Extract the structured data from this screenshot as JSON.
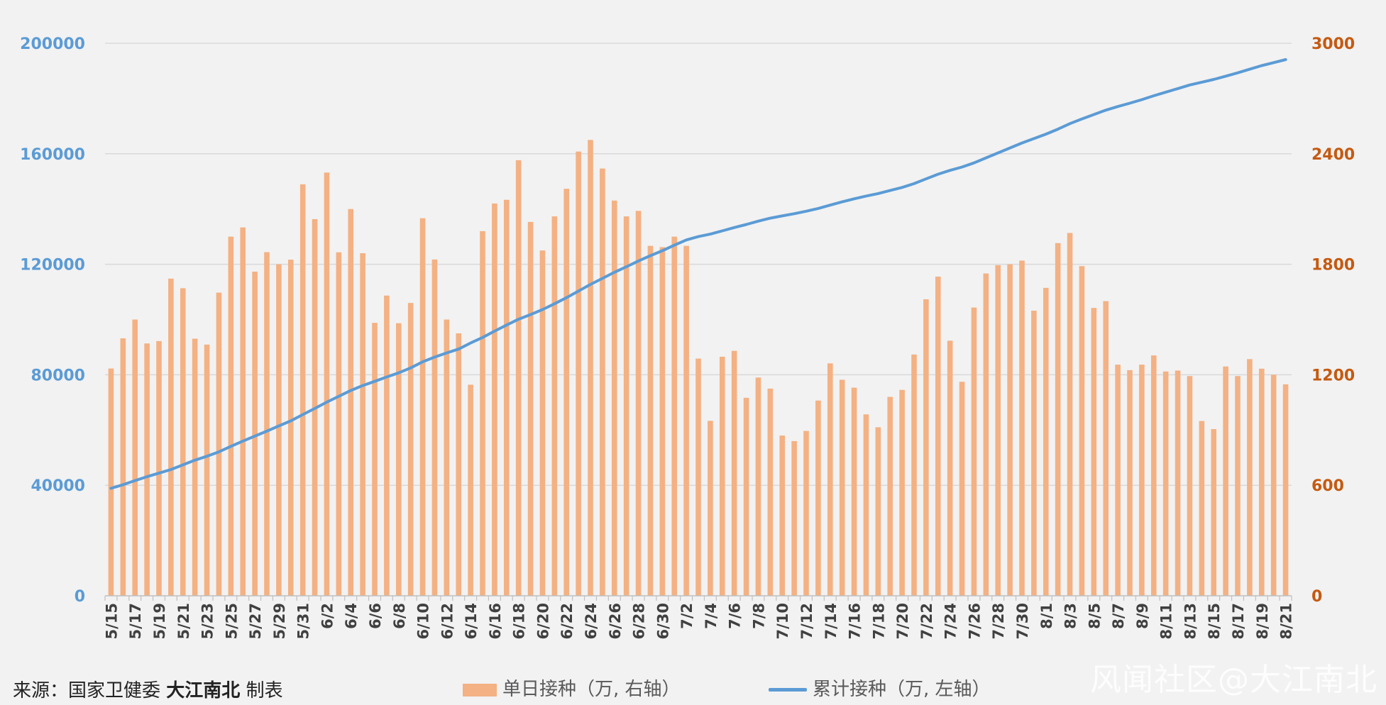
{
  "chart_data": {
    "type": "bar+line",
    "title": "",
    "categories": [
      "5/15",
      "5/16",
      "5/17",
      "5/18",
      "5/19",
      "5/20",
      "5/21",
      "5/22",
      "5/23",
      "5/24",
      "5/25",
      "5/26",
      "5/27",
      "5/28",
      "5/29",
      "5/30",
      "5/31",
      "6/1",
      "6/2",
      "6/3",
      "6/4",
      "6/5",
      "6/6",
      "6/7",
      "6/8",
      "6/9",
      "6/10",
      "6/11",
      "6/12",
      "6/13",
      "6/14",
      "6/15",
      "6/16",
      "6/17",
      "6/18",
      "6/19",
      "6/20",
      "6/21",
      "6/22",
      "6/23",
      "6/24",
      "6/25",
      "6/26",
      "6/27",
      "6/28",
      "6/29",
      "6/30",
      "7/1",
      "7/2",
      "7/3",
      "7/4",
      "7/5",
      "7/6",
      "7/7",
      "7/8",
      "7/9",
      "7/10",
      "7/11",
      "7/12",
      "7/13",
      "7/14",
      "7/15",
      "7/16",
      "7/17",
      "7/18",
      "7/19",
      "7/20",
      "7/21",
      "7/22",
      "7/23",
      "7/24",
      "7/25",
      "7/26",
      "7/27",
      "7/28",
      "7/29",
      "7/30",
      "7/31",
      "8/1",
      "8/2",
      "8/3",
      "8/4",
      "8/5",
      "8/6",
      "8/7",
      "8/8",
      "8/9",
      "8/10",
      "8/11",
      "8/12",
      "8/13",
      "8/14",
      "8/15",
      "8/16",
      "8/17",
      "8/18",
      "8/19",
      "8/20",
      "8/21"
    ],
    "x_tick_labels": [
      "5/15",
      "5/17",
      "5/19",
      "5/21",
      "5/23",
      "5/25",
      "5/27",
      "5/29",
      "5/31",
      "6/2",
      "6/4",
      "6/6",
      "6/8",
      "6/10",
      "6/12",
      "6/14",
      "6/16",
      "6/18",
      "6/20",
      "6/22",
      "6/24",
      "6/26",
      "6/28",
      "6/30",
      "7/2",
      "7/4",
      "7/6",
      "7/8",
      "7/10",
      "7/12",
      "7/14",
      "7/16",
      "7/18",
      "7/20",
      "7/22",
      "7/24",
      "7/26",
      "7/28",
      "7/30",
      "8/1",
      "8/3",
      "8/5",
      "8/7",
      "8/9",
      "8/11",
      "8/13",
      "8/15",
      "8/17",
      "8/19",
      "8/21"
    ],
    "series": [
      {
        "name": "单日接种（万, 右轴）",
        "type": "bar",
        "axis": "right",
        "color": "#f4b183",
        "values": [
          1234,
          1398,
          1500,
          1370,
          1383,
          1722,
          1670,
          1396,
          1364,
          1646,
          1950,
          2000,
          1760,
          1866,
          1800,
          1825,
          2234,
          2045,
          2298,
          1865,
          2100,
          1860,
          1482,
          1630,
          1480,
          1590,
          2050,
          1826,
          1500,
          1425,
          1146,
          1980,
          2130,
          2150,
          2365,
          2030,
          1875,
          2060,
          2210,
          2412,
          2475,
          2320,
          2146,
          2060,
          2090,
          1900,
          1893,
          1950,
          1900,
          1288,
          950,
          1298,
          1330,
          1075,
          1185,
          1125,
          870,
          840,
          895,
          1060,
          1262,
          1173,
          1130,
          985,
          915,
          1080,
          1118,
          1310,
          1610,
          1733,
          1385,
          1162,
          1565,
          1750,
          1795,
          1800,
          1820,
          1548,
          1672,
          1915,
          1970,
          1790,
          1563,
          1600,
          1255,
          1225,
          1255,
          1305,
          1218,
          1223,
          1193,
          949,
          905,
          1245,
          1193,
          1285,
          1233,
          1200,
          1148
        ]
      },
      {
        "name": "累计接种（万, 左轴）",
        "type": "line",
        "axis": "left",
        "color": "#5b9bd5",
        "values": [
          38900,
          40200,
          41700,
          43100,
          44400,
          45700,
          47400,
          49100,
          50500,
          52100,
          54100,
          56000,
          57800,
          59600,
          61500,
          63300,
          65600,
          67800,
          70100,
          72200,
          74300,
          76100,
          77600,
          79200,
          80700,
          82500,
          84700,
          86400,
          87900,
          89300,
          91500,
          93500,
          95800,
          98000,
          100100,
          101800,
          103600,
          105700,
          107900,
          110300,
          112700,
          114900,
          117100,
          119100,
          121200,
          123100,
          124900,
          126900,
          128800,
          130000,
          130900,
          132100,
          133300,
          134400,
          135600,
          136700,
          137500,
          138300,
          139200,
          140200,
          141400,
          142600,
          143700,
          144700,
          145600,
          146700,
          147800,
          149200,
          150900,
          152600,
          154000,
          155200,
          156700,
          158500,
          160300,
          162100,
          163900,
          165500,
          167100,
          168900,
          170900,
          172600,
          174200,
          175800,
          177100,
          178300,
          179600,
          181000,
          182300,
          183600,
          184900,
          185900,
          186900,
          188100,
          189300,
          190600,
          191900,
          193000,
          194100
        ]
      }
    ],
    "y_left": {
      "lim": [
        0,
        200000
      ],
      "ticks": [
        0,
        40000,
        80000,
        120000,
        160000,
        200000
      ],
      "color": "#5b9bd5"
    },
    "y_right": {
      "lim": [
        0,
        3000
      ],
      "ticks": [
        0,
        600,
        1200,
        1800,
        2400,
        3000
      ],
      "color": "#c55a11"
    },
    "grid": true,
    "legend_position": "bottom"
  },
  "footer": {
    "source_prefix": "来源：国家卫健委",
    "source_author": "大江南北",
    "source_suffix": "制表"
  },
  "watermark": "风闻社区@大江南北"
}
